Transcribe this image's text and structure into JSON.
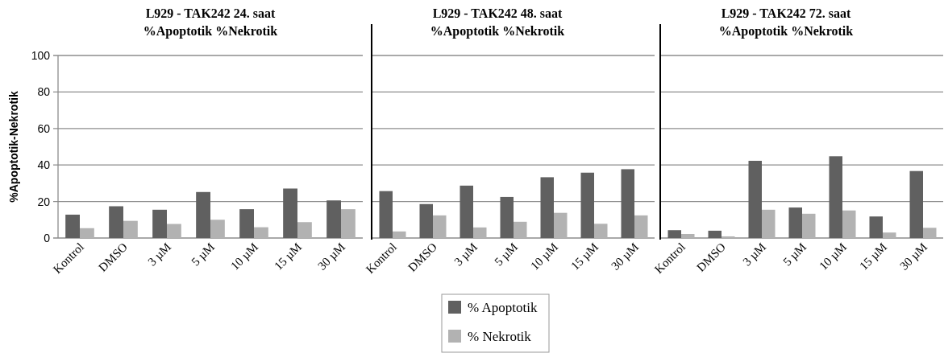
{
  "chart_data": [
    {
      "type": "bar",
      "title": "L929 - TAK242 24. saat",
      "subtitle": "%Apoptotik %Nekrotik",
      "ylabel": "%Apoptotik-Nekrotik",
      "categories": [
        "Kontrol",
        "DMSO",
        "3 µM",
        "5 µM",
        "10 µM",
        "15 µM",
        "30 µM"
      ],
      "series": [
        {
          "color": "#606060",
          "values": [
            12.8,
            17.4,
            15.5,
            25.2,
            15.8,
            27.1,
            20.6
          ]
        },
        {
          "color": "#b2b2b2",
          "values": [
            5.4,
            9.4,
            7.7,
            10.0,
            5.9,
            8.7,
            15.8
          ]
        }
      ],
      "ylim": [
        0,
        100
      ],
      "yticks": [
        0,
        20,
        40,
        60,
        80,
        100
      ],
      "grid": "y",
      "legend": false
    },
    {
      "type": "bar",
      "title": "L929 - TAK242 48. saat",
      "subtitle": "%Apoptotik %Nekrotik",
      "categories": [
        "Kontrol",
        "DMSO",
        "3 µM",
        "5 µM",
        "10 µM",
        "15 µM",
        "30 µM"
      ],
      "series": [
        {
          "name": "% Apoptotik",
          "color": "#606060",
          "values": [
            25.7,
            18.6,
            28.7,
            22.5,
            33.3,
            35.8,
            37.7
          ]
        },
        {
          "name": "% Nekrotik",
          "color": "#b2b2b2",
          "values": [
            3.6,
            12.4,
            5.8,
            8.9,
            13.8,
            7.8,
            12.4
          ]
        }
      ],
      "ylim": [
        0,
        100
      ],
      "yticks": [
        0,
        20,
        40,
        60,
        80,
        100
      ],
      "grid": "y",
      "legend": "bottom",
      "tick_labels": "x"
    },
    {
      "type": "bar",
      "title": "L929 - TAK242 72. saat",
      "subtitle": "%Apoptotik %Nekrotik",
      "categories": [
        "Kontrol",
        "DMSO",
        "3 µM",
        "5 µM",
        "10 µM",
        "15 µM",
        "30 µM"
      ],
      "series": [
        {
          "color": "#606060",
          "values": [
            4.3,
            4.0,
            42.3,
            16.7,
            44.8,
            11.8,
            36.7
          ]
        },
        {
          "color": "#b2b2b2",
          "values": [
            2.2,
            0.9,
            15.5,
            13.3,
            15.1,
            3.0,
            5.6
          ]
        }
      ],
      "ylim": [
        0,
        100
      ],
      "yticks": [
        0,
        20,
        40,
        60,
        80,
        100
      ],
      "grid": "y",
      "legend": false,
      "tick_labels": "x"
    }
  ]
}
